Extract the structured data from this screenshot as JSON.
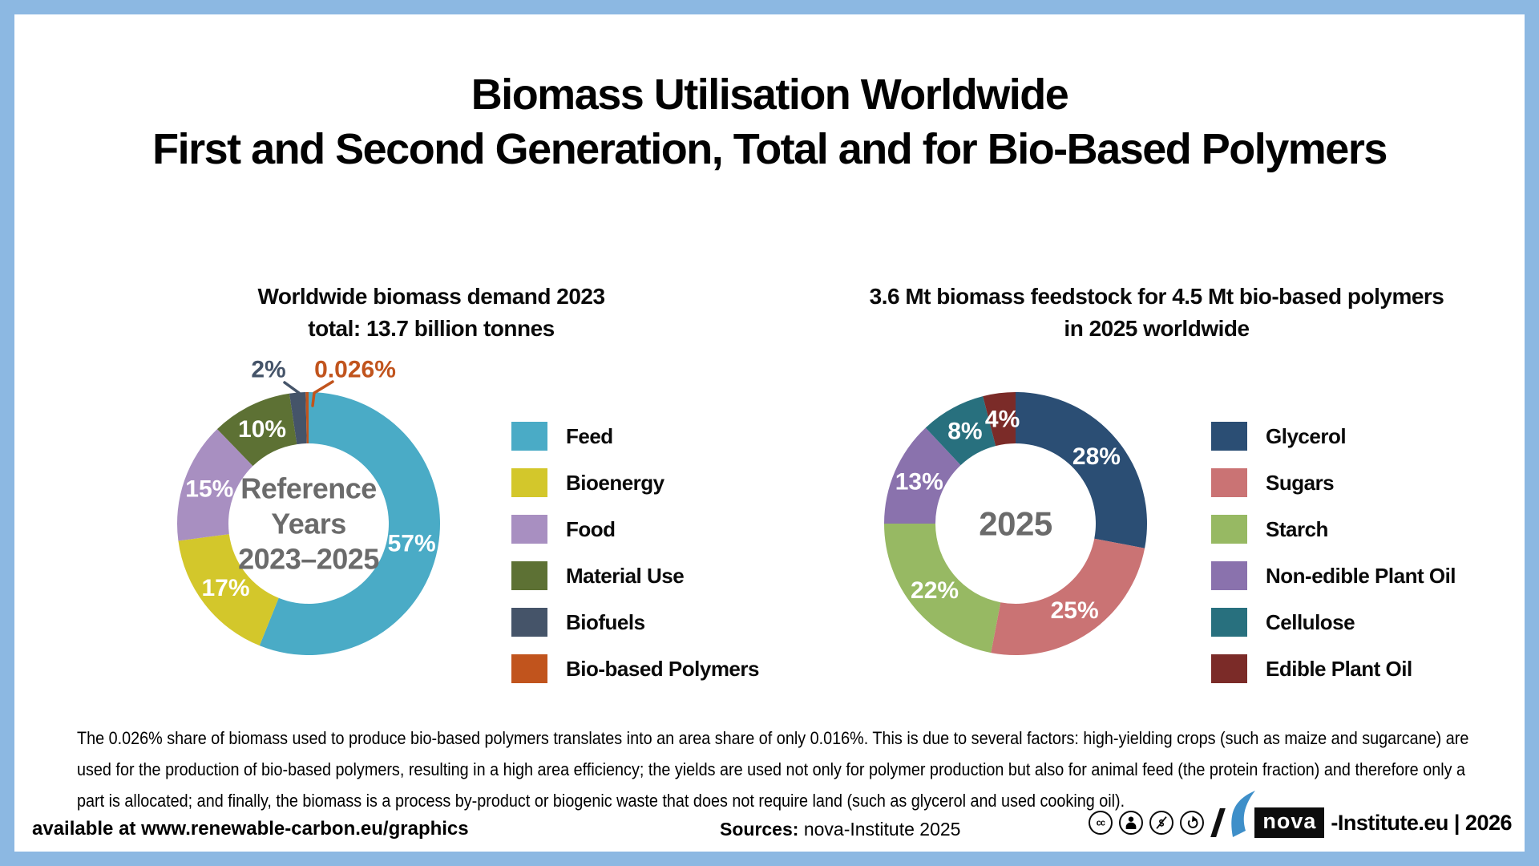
{
  "title": {
    "line1": "Biomass Utilisation Worldwide",
    "line2": "First and Second Generation, Total and for Bio-Based Polymers"
  },
  "chart_data": [
    {
      "type": "pie",
      "variant": "donut",
      "title": "Worldwide biomass demand 2023",
      "subtitle": "total: 13.7 billion tonnes",
      "center_lines": [
        "Reference",
        "Years",
        "2023–2025"
      ],
      "center_font": 36,
      "center_color": "#6B6B6B",
      "legend_position": "right",
      "segments": [
        {
          "label": "Feed",
          "value": 57,
          "display": "57%",
          "color": "#4AABC6"
        },
        {
          "label": "Bioenergy",
          "value": 17,
          "display": "17%",
          "color": "#D3C72B"
        },
        {
          "label": "Food",
          "value": 15,
          "display": "15%",
          "color": "#A88FC1"
        },
        {
          "label": "Material Use",
          "value": 10,
          "display": "10%",
          "color": "#5D7134"
        },
        {
          "label": "Biofuels",
          "value": 2,
          "display": "2%",
          "color": "#455469",
          "callout": {
            "label_offset": [
              -50,
              -192
            ],
            "leader": [
              [
                -30,
                -176
              ],
              [
                -12,
                -163
              ],
              [
                -10,
                -147
              ]
            ]
          }
        },
        {
          "label": "Bio-based Polymers",
          "value": 0.026,
          "display": "0.026%",
          "color": "#C1541D",
          "callout": {
            "label_offset": [
              58,
              -192
            ],
            "leader": [
              [
                30,
                -177
              ],
              [
                7,
                -163
              ],
              [
                5,
                -147
              ]
            ]
          }
        }
      ]
    },
    {
      "type": "pie",
      "variant": "donut",
      "title": "3.6 Mt biomass feedstock for 4.5 Mt bio-based polymers",
      "subtitle": "in 2025 worldwide",
      "center_lines": [
        "2025"
      ],
      "center_font": 42,
      "center_color": "#6B6B6B",
      "legend_position": "right",
      "segments": [
        {
          "label": "Glycerol",
          "value": 28,
          "display": "28%",
          "color": "#2B4E74"
        },
        {
          "label": "Sugars",
          "value": 25,
          "display": "25%",
          "color": "#CA7374"
        },
        {
          "label": "Starch",
          "value": 22,
          "display": "22%",
          "color": "#97B963"
        },
        {
          "label": "Non-edible Plant Oil",
          "value": 13,
          "display": "13%",
          "color": "#8A72AD"
        },
        {
          "label": "Cellulose",
          "value": 8,
          "display": "8%",
          "color": "#28707E"
        },
        {
          "label": "Edible Plant Oil",
          "value": 4,
          "display": "4%",
          "color": "#7B2B28"
        }
      ]
    }
  ],
  "footnote": "The 0.026% share of biomass used to produce bio-based polymers translates into an area share of only 0.016%. This is due to several factors: high-yielding crops (such as maize and sugarcane) are used for the production of bio-based polymers, resulting in a high area efficiency; the yields are used not only for polymer production but also for animal feed (the protein fraction) and therefore only a part is allocated; and finally, the biomass is a process by-product or biogenic waste that does not require land (such as glycerol and used cooking oil).",
  "footer": {
    "left": "available at www.renewable-carbon.eu/graphics",
    "sources_label": "Sources:",
    "sources_value": " nova-Institute 2025",
    "cc_icons": [
      "cc-icon",
      "cc-by-icon",
      "cc-nc-icon",
      "cc-sa-icon"
    ],
    "logo_text": "nova",
    "right_text": "-Institute.eu | 2026"
  },
  "frame_color": "#8CB8E2"
}
